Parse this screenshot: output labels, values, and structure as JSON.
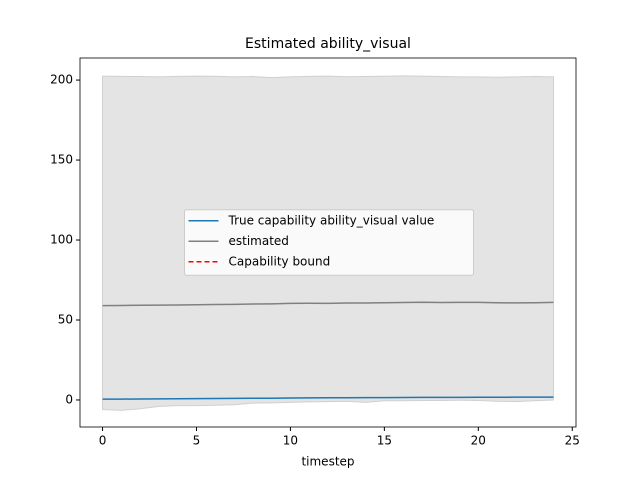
{
  "chart_data": {
    "type": "line",
    "title": "Estimated ability_visual",
    "xlabel": "timestep",
    "x": [
      0,
      1,
      2,
      3,
      4,
      5,
      6,
      7,
      8,
      9,
      10,
      11,
      12,
      13,
      14,
      15,
      16,
      17,
      18,
      19,
      20,
      21,
      22,
      23,
      24
    ],
    "series": [
      {
        "name": "True capability ability_visual value",
        "color": "#1f77b4",
        "style": "solid",
        "values": [
          0.5,
          0.55,
          0.6,
          0.7,
          0.8,
          0.85,
          0.9,
          1.0,
          1.05,
          1.1,
          1.2,
          1.3,
          1.35,
          1.4,
          1.45,
          1.5,
          1.55,
          1.6,
          1.6,
          1.65,
          1.7,
          1.7,
          1.75,
          1.75,
          1.8
        ]
      },
      {
        "name": "estimated",
        "color": "#808080",
        "style": "solid",
        "values": [
          59.0,
          59.1,
          59.2,
          59.3,
          59.4,
          59.5,
          59.7,
          59.8,
          60.0,
          60.1,
          60.4,
          60.5,
          60.4,
          60.6,
          60.6,
          60.8,
          60.9,
          61.1,
          60.9,
          61.0,
          61.0,
          60.8,
          60.7,
          60.8,
          61.0
        ]
      },
      {
        "name": "Capability bound",
        "color": "#ff0000",
        "style": "dashed",
        "values": [
          null,
          null,
          null,
          null,
          null,
          null,
          null,
          null,
          null,
          null,
          null,
          null,
          null,
          null,
          null,
          null,
          null,
          null,
          null,
          null,
          null,
          null,
          null,
          null,
          null
        ]
      }
    ],
    "band": {
      "color": "#e4e4e4",
      "upper": [
        202.5,
        202.3,
        202.2,
        202.0,
        202.3,
        202.5,
        202.4,
        202.0,
        202.2,
        201.5,
        202.0,
        202.3,
        202.5,
        202.1,
        202.2,
        202.4,
        202.6,
        202.5,
        202.2,
        202.0,
        202.0,
        201.8,
        202.0,
        202.2,
        202.0
      ],
      "lower": [
        -6,
        -6.5,
        -5.5,
        -4,
        -3.5,
        -3.5,
        -3.3,
        -3,
        -2,
        -1.8,
        -1.5,
        -1.2,
        -1,
        -0.8,
        -1.5,
        -0.5,
        -0.5,
        -0.3,
        -0.3,
        -0.2,
        -0.3,
        -0.8,
        -1,
        -0.5,
        0
      ]
    },
    "xlim": [
      -1.2,
      25.2
    ],
    "xticks": [
      0,
      5,
      10,
      15,
      20,
      25
    ],
    "ylim": [
      -16.9,
      213.8
    ],
    "yticks": [
      0,
      50,
      100,
      150,
      200
    ],
    "grid": false,
    "legend": "center"
  }
}
